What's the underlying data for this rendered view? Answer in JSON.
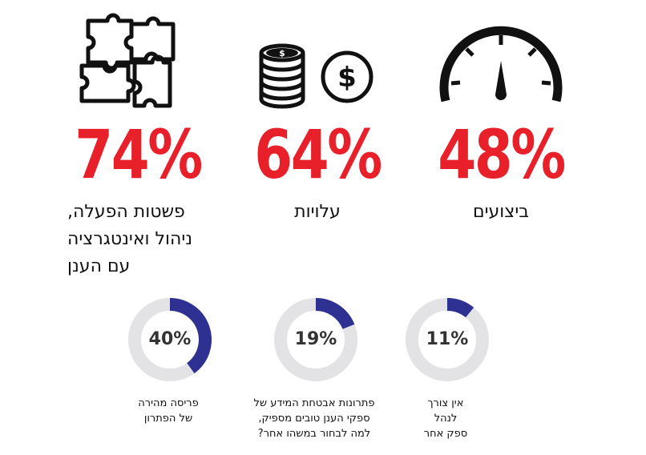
{
  "stats": [
    {
      "id": "performance",
      "value": "48%",
      "label_lines": [
        "ביצועים"
      ],
      "icon": "speedometer-icon"
    },
    {
      "id": "costs",
      "value": "64%",
      "label_lines": [
        "עלויות"
      ],
      "icon": "coins-dollar-icon"
    },
    {
      "id": "simplicity",
      "value": "74%",
      "label_lines": [
        "פשטות הפעלה,",
        "ניהול ואינטגרציה",
        "עם הענן"
      ],
      "icon": "puzzle-icon"
    }
  ],
  "chart_data": {
    "type": "donut",
    "title": "",
    "items": [
      {
        "name": "no-need",
        "value": 11,
        "label": "11%",
        "caption_lines": [
          "אין צורך",
          "לנהל",
          "ספק אחר"
        ]
      },
      {
        "name": "security",
        "value": 19,
        "label": "19%",
        "caption_lines": [
          "פתרונות אבטחת המידע של",
          "ספקי הענן טובים מספיק,",
          "למה לבחור במשהו אחר?"
        ]
      },
      {
        "name": "deploy",
        "value": 40,
        "label": "40%",
        "caption_lines": [
          "פריסה מהירה",
          "של הפתרון"
        ]
      }
    ],
    "ylim": [
      0,
      100
    ]
  },
  "colors": {
    "accent_red": "#e8202a",
    "donut_fill": "#2e3192",
    "donut_track": "#e3e3e5",
    "icon": "#111111"
  }
}
